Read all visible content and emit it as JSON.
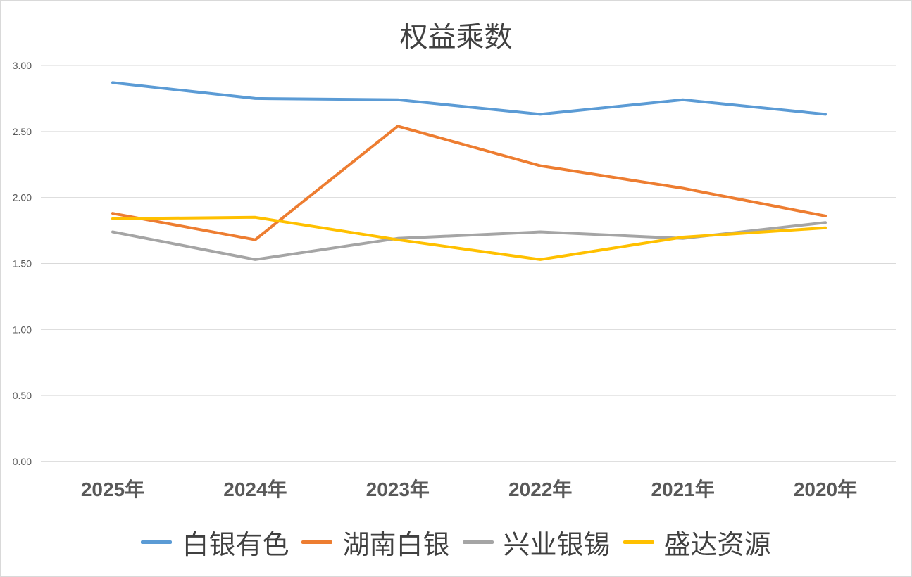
{
  "chart_data": {
    "type": "line",
    "title": "权益乘数",
    "xlabel": "",
    "ylabel": "",
    "categories": [
      "2025年",
      "2024年",
      "2023年",
      "2022年",
      "2021年",
      "2020年"
    ],
    "ylim": [
      0,
      3
    ],
    "yticks": [
      "0.00",
      "0.50",
      "1.00",
      "1.50",
      "2.00",
      "2.50",
      "3.00"
    ],
    "grid": true,
    "legend_position": "bottom",
    "series": [
      {
        "name": "白银有色",
        "color": "#5b9bd5",
        "values": [
          2.87,
          2.75,
          2.74,
          2.63,
          2.74,
          2.63
        ]
      },
      {
        "name": "湖南白银",
        "color": "#ed7d31",
        "values": [
          1.88,
          1.68,
          2.54,
          2.24,
          2.07,
          1.86
        ]
      },
      {
        "name": "兴业银锡",
        "color": "#a5a5a5",
        "values": [
          1.74,
          1.53,
          1.69,
          1.74,
          1.69,
          1.81
        ]
      },
      {
        "name": "盛达资源",
        "color": "#ffc000",
        "values": [
          1.84,
          1.85,
          1.68,
          1.53,
          1.7,
          1.77
        ]
      }
    ]
  }
}
